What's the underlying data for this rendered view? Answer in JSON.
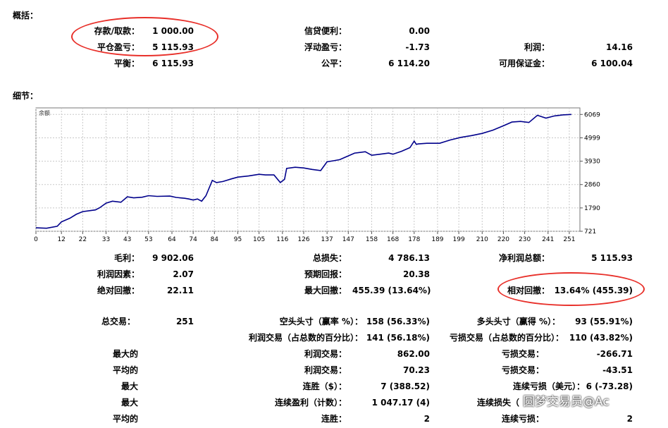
{
  "summary": {
    "title": "概括：",
    "deposit_label": "存款/取款：",
    "deposit": "1 000.00",
    "closed_pl_label": "平仓盈亏：",
    "closed_pl": "5 115.93",
    "balance_label": "平衡：",
    "balance": "6 115.93",
    "credit_label": "信贷便利：",
    "credit": "0.00",
    "floating_pl_label": "浮动盈亏：",
    "floating_pl": "-1.73",
    "equity_label": "公平：",
    "equity": "6 114.20",
    "profit_label": "利润：",
    "profit": "14.16",
    "free_margin_label": "可用保证金：",
    "free_margin": "6 100.04"
  },
  "details": {
    "title": "细节：",
    "gross_profit_label": "毛利：",
    "gross_profit": "9 902.06",
    "gross_loss_label": "总损失：",
    "gross_loss": "4 786.13",
    "net_profit_label": "净利润总额：",
    "net_profit": "5 115.93",
    "profit_factor_label": "利润因素：",
    "profit_factor": "2.07",
    "expected_payoff_label": "预期回报：",
    "expected_payoff": "20.38",
    "abs_drawdown_label": "绝对回撤：",
    "abs_drawdown": "22.11",
    "max_drawdown_label": "最大回撤：",
    "max_drawdown": "455.39 (13.64%)",
    "rel_drawdown_label": "相对回撤：",
    "rel_drawdown": "13.64% (455.39)",
    "total_trades_label": "总交易：",
    "total_trades": "251",
    "short_label": "空头头寸（赢率 %）：",
    "short": "158 (56.33%)",
    "long_label": "多头头寸（赢得 %）：",
    "long": "93 (55.91%)",
    "profit_trades_label": "利润交易（占总数的百分比）：",
    "profit_trades": "141 (56.18%)",
    "loss_trades_label": "亏损交易（占总数的百分比）：",
    "loss_trades": "110 (43.82%)",
    "largest_label": "最大的",
    "largest_profit_label": "利润交易：",
    "largest_profit": "862.00",
    "largest_loss_label": "亏损交易：",
    "largest_loss": "-266.71",
    "average_label": "平均的",
    "avg_profit_label": "利润交易：",
    "avg_profit": "70.23",
    "avg_loss_label": "亏损交易：",
    "avg_loss": "-43.51",
    "max_label": "最大",
    "max_wins_label": "连胜（$）：",
    "max_wins": "7 (388.52)",
    "max_losses_label": "连续亏损（美元）：",
    "max_losses": "6 (-73.28)",
    "max2_label": "最大",
    "max_cons_profit_label": "连续盈利（计数）：",
    "max_cons_profit": "1 047.17 (4)",
    "max_cons_loss_label": "连续损失（",
    "max_cons_loss": "",
    "avg2_label": "平均的",
    "avg_wins_label": "连胜：",
    "avg_wins": "2",
    "avg_losses_label": "连续亏损：",
    "avg_losses": "2"
  },
  "watermark": "圆梦交易员@Ac",
  "colors": {
    "line": "#00008b",
    "highlight": "#e8302a"
  },
  "chart_data": {
    "type": "line",
    "title": "余额",
    "x": [
      0,
      5,
      10,
      12,
      16,
      19,
      22,
      28,
      30,
      33,
      36,
      40,
      43,
      46,
      50,
      53,
      57,
      63,
      66,
      70,
      72,
      74,
      76,
      78,
      80,
      83,
      85,
      88,
      92,
      95,
      100,
      105,
      108,
      112,
      115,
      117,
      118,
      122,
      126,
      130,
      134,
      137,
      140,
      143,
      146,
      150,
      155,
      158,
      162,
      166,
      168,
      172,
      176,
      178,
      179,
      180,
      184,
      190,
      195,
      200,
      205,
      210,
      215,
      220,
      224,
      228,
      232,
      236,
      240,
      244,
      248,
      252
    ],
    "y": [
      880,
      860,
      950,
      1150,
      1320,
      1500,
      1620,
      1700,
      1800,
      2010,
      2100,
      2050,
      2300,
      2250,
      2280,
      2350,
      2320,
      2330,
      2270,
      2230,
      2200,
      2150,
      2200,
      2100,
      2350,
      3050,
      2950,
      3000,
      3120,
      3200,
      3250,
      3330,
      3300,
      3300,
      2950,
      3100,
      3600,
      3650,
      3620,
      3550,
      3500,
      3900,
      3950,
      4000,
      4130,
      4300,
      4360,
      4200,
      4250,
      4300,
      4250,
      4380,
      4550,
      4850,
      4700,
      4720,
      4750,
      4750,
      4900,
      5020,
      5100,
      5200,
      5350,
      5550,
      5720,
      5750,
      5700,
      6030,
      5900,
      6000,
      6050,
      6069
    ],
    "xticks": [
      0,
      12,
      22,
      33,
      43,
      53,
      64,
      74,
      84,
      95,
      105,
      116,
      126,
      137,
      147,
      158,
      168,
      178,
      189,
      199,
      210,
      220,
      230,
      241,
      251
    ],
    "yticks": [
      721,
      1790,
      2860,
      3930,
      4999,
      6069
    ],
    "xlim": [
      0,
      256
    ],
    "ylim": [
      721,
      6369
    ],
    "grid": true
  }
}
